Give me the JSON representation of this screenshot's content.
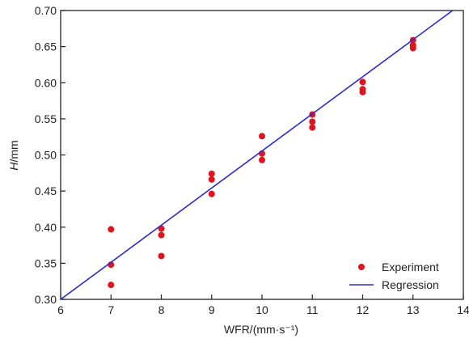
{
  "chart_data": {
    "type": "scatter",
    "xlabel": "WFR/(mm·s⁻¹)",
    "ylabel_italic": "H",
    "ylabel_rest": "/mm",
    "xlim": [
      6,
      14
    ],
    "ylim": [
      0.3,
      0.7
    ],
    "x_ticks": [
      "6",
      "7",
      "8",
      "9",
      "10",
      "11",
      "12",
      "13",
      "14"
    ],
    "y_ticks": [
      "0.30",
      "0.35",
      "0.40",
      "0.45",
      "0.50",
      "0.55",
      "0.60",
      "0.65",
      "0.70"
    ],
    "grid": false,
    "legend_position": "bottom-right",
    "series": [
      {
        "name": "Experiment",
        "kind": "points",
        "color": "#e0141e",
        "points": [
          [
            7,
            0.397
          ],
          [
            7,
            0.348
          ],
          [
            7,
            0.32
          ],
          [
            8,
            0.398
          ],
          [
            8,
            0.389
          ],
          [
            8,
            0.36
          ],
          [
            9,
            0.474
          ],
          [
            9,
            0.466
          ],
          [
            9,
            0.446
          ],
          [
            10,
            0.526
          ],
          [
            10,
            0.502
          ],
          [
            10,
            0.493
          ],
          [
            11,
            0.556
          ],
          [
            11,
            0.546
          ],
          [
            11,
            0.538
          ],
          [
            12,
            0.601
          ],
          [
            12,
            0.591
          ],
          [
            12,
            0.587
          ],
          [
            13,
            0.659
          ],
          [
            13,
            0.652
          ],
          [
            13,
            0.648
          ]
        ]
      },
      {
        "name": "Regression",
        "kind": "line",
        "color": "#2b2bd6",
        "points": [
          [
            6,
            0.3
          ],
          [
            14,
            0.711
          ]
        ]
      }
    ]
  }
}
